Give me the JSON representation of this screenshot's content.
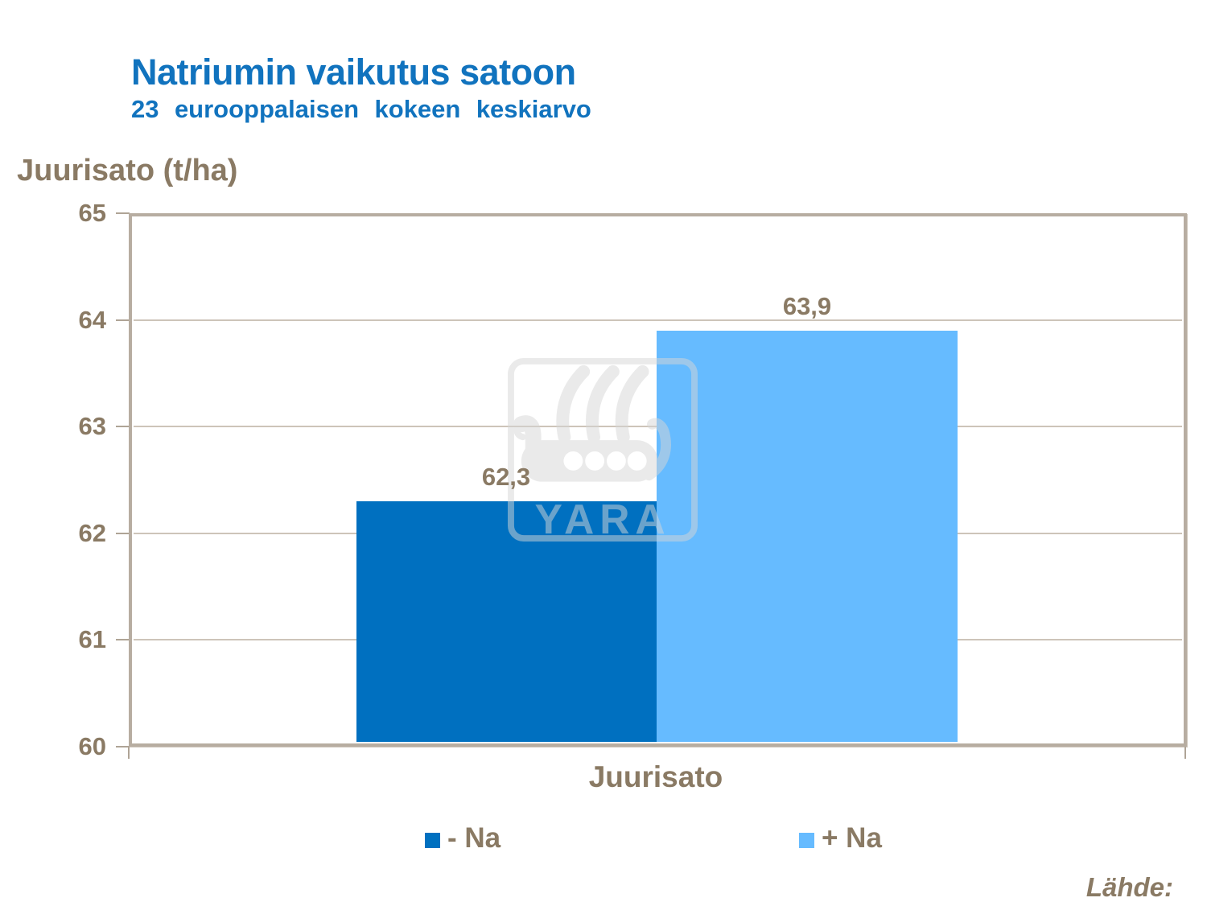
{
  "slide": {
    "title": "Natriumin vaikutus satoon",
    "subtitle": "23 eurooppalaisen kokeen keskiarvo",
    "source_label": "Lähde:"
  },
  "axis": {
    "y_title": "Juurisato (t/ha)",
    "x_category": "Juurisato",
    "y_ticks": [
      "65",
      "64",
      "63",
      "62",
      "61",
      "60"
    ]
  },
  "chart_data": {
    "type": "bar",
    "categories": [
      "Juurisato"
    ],
    "series": [
      {
        "name": "- Na",
        "values": [
          62.3
        ],
        "display_labels": [
          "62,3"
        ],
        "color": "#0070C0"
      },
      {
        "name": "+ Na",
        "values": [
          63.9
        ],
        "display_labels": [
          "63,9"
        ],
        "color": "#66BBFF"
      }
    ],
    "title": "Natriumin vaikutus satoon",
    "subtitle": "23 eurooppalaisen kokeen keskiarvo",
    "xlabel": "Juurisato",
    "ylabel": "Juurisato (t/ha)",
    "ylim": [
      60,
      65
    ],
    "y_tick_interval": 1,
    "grid": true,
    "legend_position": "bottom"
  },
  "legend": {
    "items": [
      {
        "label": "- Na",
        "color": "#0070C0"
      },
      {
        "label": "+ Na",
        "color": "#66BBFF"
      }
    ]
  },
  "watermark": {
    "name": "yara-logo",
    "text": "YARA"
  },
  "colors": {
    "title_blue": "#1173BE",
    "text_brown": "#8A7A64",
    "bar_dark": "#0070C0",
    "bar_light": "#66BBFF",
    "frame": "#B7ADA1",
    "gridline": "#CDC4B9"
  }
}
